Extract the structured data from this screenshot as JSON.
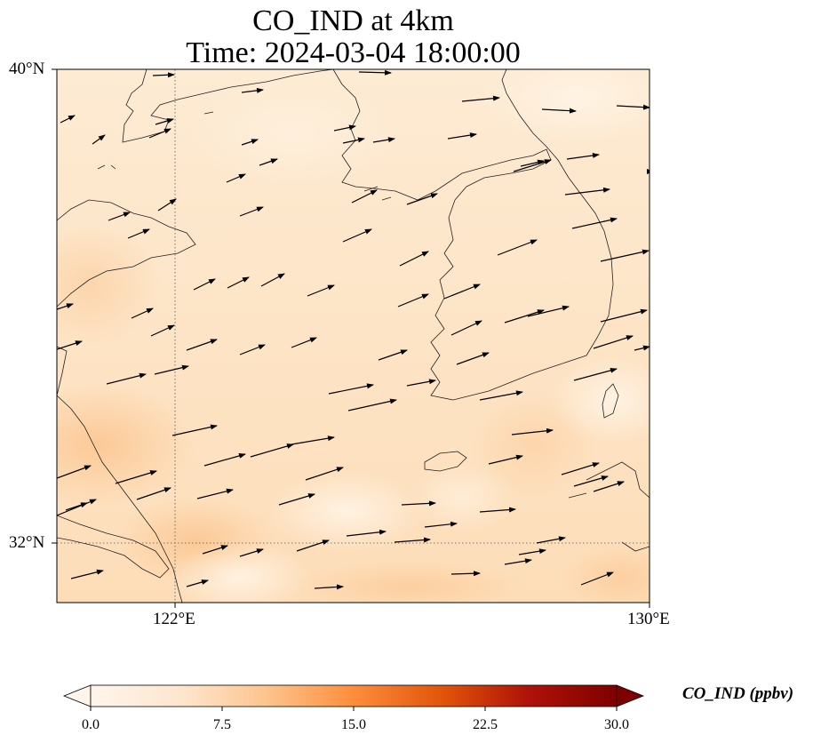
{
  "title": {
    "line1": "CO_IND at 4km",
    "line2": "Time: 2024-03-04 18:00:00"
  },
  "axes": {
    "lat_ticks": [
      {
        "label": "40°N",
        "value": 40
      },
      {
        "label": "32°N",
        "value": 32
      }
    ],
    "lon_ticks": [
      {
        "label": "122°E",
        "value": 122
      },
      {
        "label": "130°E",
        "value": 130
      }
    ],
    "extent": {
      "lon_min": 120,
      "lon_max": 130,
      "lat_min": 31,
      "lat_max": 40
    },
    "gridlines": "dotted at 122°E and 32°N"
  },
  "colorbar": {
    "label": "CO_IND (ppbv)",
    "ticks": [
      "0.0",
      "7.5",
      "15.0",
      "22.5",
      "30.0"
    ],
    "min": 0,
    "max": 30,
    "extend": "both",
    "colormap": [
      "#fff5eb",
      "#fdd4a8",
      "#fdae6b",
      "#f16913",
      "#d94801",
      "#a50f15",
      "#67000d"
    ]
  },
  "field": {
    "variable": "CO_IND",
    "units": "ppbv",
    "typical_range": [
      1,
      6
    ]
  }
}
